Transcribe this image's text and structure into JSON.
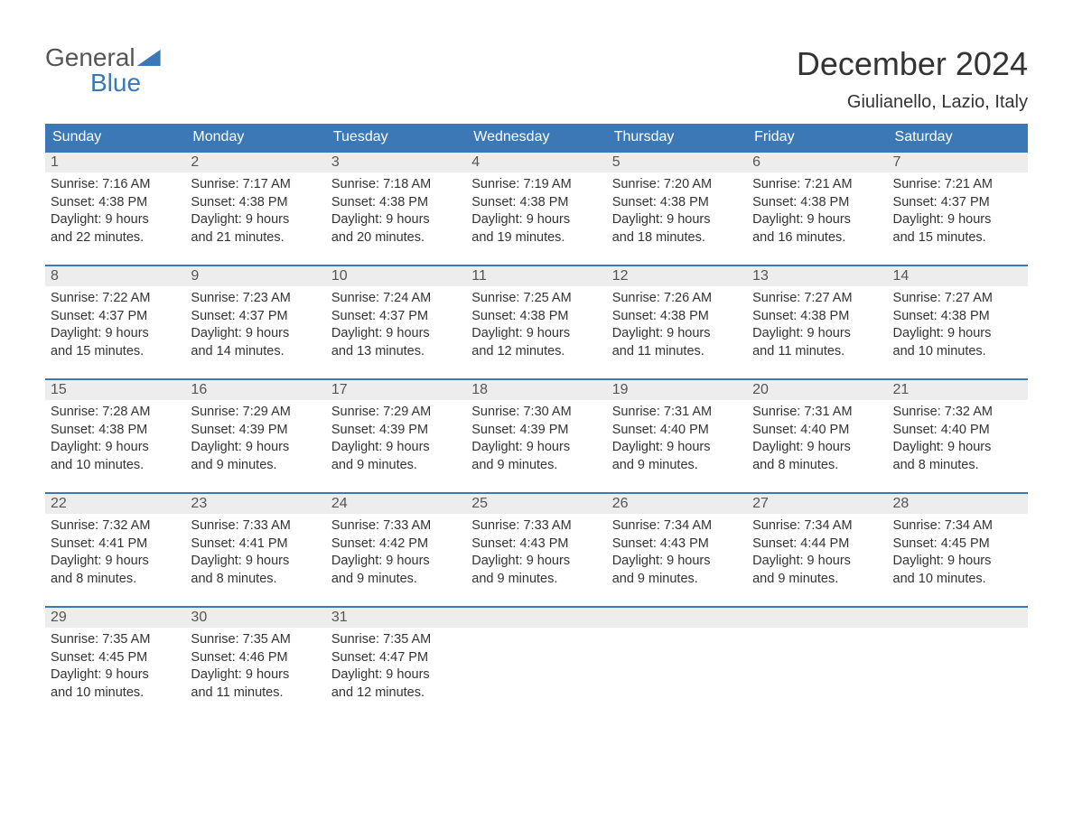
{
  "logo": {
    "text1": "General",
    "text2": "Blue"
  },
  "title": "December 2024",
  "location": "Giulianello, Lazio, Italy",
  "colors": {
    "header_bg": "#3b78b5",
    "header_fg": "#ffffff",
    "daynum_bg": "#ededed",
    "daynum_fg": "#555555",
    "border": "#3b78b5",
    "text": "#333333",
    "background": "#ffffff"
  },
  "day_headers": [
    "Sunday",
    "Monday",
    "Tuesday",
    "Wednesday",
    "Thursday",
    "Friday",
    "Saturday"
  ],
  "weeks": [
    [
      {
        "n": "1",
        "sunrise": "7:16 AM",
        "sunset": "4:38 PM",
        "dh": "9",
        "dm": "22"
      },
      {
        "n": "2",
        "sunrise": "7:17 AM",
        "sunset": "4:38 PM",
        "dh": "9",
        "dm": "21"
      },
      {
        "n": "3",
        "sunrise": "7:18 AM",
        "sunset": "4:38 PM",
        "dh": "9",
        "dm": "20"
      },
      {
        "n": "4",
        "sunrise": "7:19 AM",
        "sunset": "4:38 PM",
        "dh": "9",
        "dm": "19"
      },
      {
        "n": "5",
        "sunrise": "7:20 AM",
        "sunset": "4:38 PM",
        "dh": "9",
        "dm": "18"
      },
      {
        "n": "6",
        "sunrise": "7:21 AM",
        "sunset": "4:38 PM",
        "dh": "9",
        "dm": "16"
      },
      {
        "n": "7",
        "sunrise": "7:21 AM",
        "sunset": "4:37 PM",
        "dh": "9",
        "dm": "15"
      }
    ],
    [
      {
        "n": "8",
        "sunrise": "7:22 AM",
        "sunset": "4:37 PM",
        "dh": "9",
        "dm": "15"
      },
      {
        "n": "9",
        "sunrise": "7:23 AM",
        "sunset": "4:37 PM",
        "dh": "9",
        "dm": "14"
      },
      {
        "n": "10",
        "sunrise": "7:24 AM",
        "sunset": "4:37 PM",
        "dh": "9",
        "dm": "13"
      },
      {
        "n": "11",
        "sunrise": "7:25 AM",
        "sunset": "4:38 PM",
        "dh": "9",
        "dm": "12"
      },
      {
        "n": "12",
        "sunrise": "7:26 AM",
        "sunset": "4:38 PM",
        "dh": "9",
        "dm": "11"
      },
      {
        "n": "13",
        "sunrise": "7:27 AM",
        "sunset": "4:38 PM",
        "dh": "9",
        "dm": "11"
      },
      {
        "n": "14",
        "sunrise": "7:27 AM",
        "sunset": "4:38 PM",
        "dh": "9",
        "dm": "10"
      }
    ],
    [
      {
        "n": "15",
        "sunrise": "7:28 AM",
        "sunset": "4:38 PM",
        "dh": "9",
        "dm": "10"
      },
      {
        "n": "16",
        "sunrise": "7:29 AM",
        "sunset": "4:39 PM",
        "dh": "9",
        "dm": "9"
      },
      {
        "n": "17",
        "sunrise": "7:29 AM",
        "sunset": "4:39 PM",
        "dh": "9",
        "dm": "9"
      },
      {
        "n": "18",
        "sunrise": "7:30 AM",
        "sunset": "4:39 PM",
        "dh": "9",
        "dm": "9"
      },
      {
        "n": "19",
        "sunrise": "7:31 AM",
        "sunset": "4:40 PM",
        "dh": "9",
        "dm": "9"
      },
      {
        "n": "20",
        "sunrise": "7:31 AM",
        "sunset": "4:40 PM",
        "dh": "9",
        "dm": "8"
      },
      {
        "n": "21",
        "sunrise": "7:32 AM",
        "sunset": "4:40 PM",
        "dh": "9",
        "dm": "8"
      }
    ],
    [
      {
        "n": "22",
        "sunrise": "7:32 AM",
        "sunset": "4:41 PM",
        "dh": "9",
        "dm": "8"
      },
      {
        "n": "23",
        "sunrise": "7:33 AM",
        "sunset": "4:41 PM",
        "dh": "9",
        "dm": "8"
      },
      {
        "n": "24",
        "sunrise": "7:33 AM",
        "sunset": "4:42 PM",
        "dh": "9",
        "dm": "9"
      },
      {
        "n": "25",
        "sunrise": "7:33 AM",
        "sunset": "4:43 PM",
        "dh": "9",
        "dm": "9"
      },
      {
        "n": "26",
        "sunrise": "7:34 AM",
        "sunset": "4:43 PM",
        "dh": "9",
        "dm": "9"
      },
      {
        "n": "27",
        "sunrise": "7:34 AM",
        "sunset": "4:44 PM",
        "dh": "9",
        "dm": "9"
      },
      {
        "n": "28",
        "sunrise": "7:34 AM",
        "sunset": "4:45 PM",
        "dh": "9",
        "dm": "10"
      }
    ],
    [
      {
        "n": "29",
        "sunrise": "7:35 AM",
        "sunset": "4:45 PM",
        "dh": "9",
        "dm": "10"
      },
      {
        "n": "30",
        "sunrise": "7:35 AM",
        "sunset": "4:46 PM",
        "dh": "9",
        "dm": "11"
      },
      {
        "n": "31",
        "sunrise": "7:35 AM",
        "sunset": "4:47 PM",
        "dh": "9",
        "dm": "12"
      },
      null,
      null,
      null,
      null
    ]
  ],
  "labels": {
    "sunrise": "Sunrise: ",
    "sunset": "Sunset: ",
    "daylight1": "Daylight: ",
    "daylight2": " hours and ",
    "daylight3": " minutes."
  }
}
